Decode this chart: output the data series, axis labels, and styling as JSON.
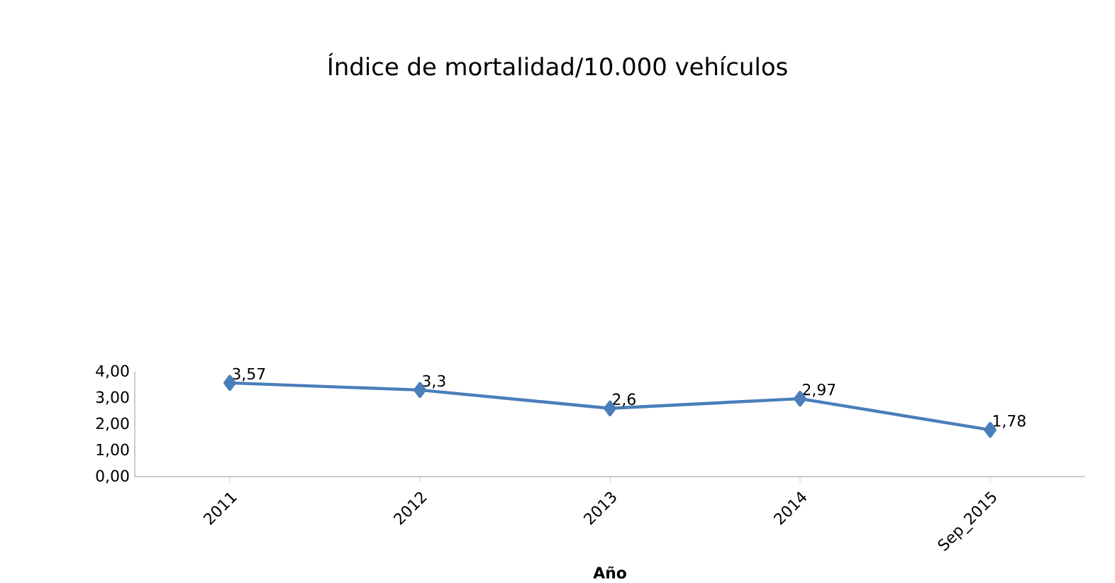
{
  "chart_data": {
    "type": "line",
    "title": "Índice de mortalidad/10.000 vehículos",
    "xlabel": "Año",
    "categories": [
      "2011",
      "2012",
      "2013",
      "2014",
      "Sep_2015"
    ],
    "series": [
      {
        "color": "#4a7ebb",
        "values": [
          3.57,
          3.3,
          2.6,
          2.97,
          1.78
        ],
        "value_labels": [
          "3,57",
          "3,3",
          "2,6",
          "2,97",
          "1,78"
        ]
      }
    ],
    "ylim": [
      0,
      4
    ],
    "yticks": [
      {
        "value": 0,
        "label": "0,00"
      },
      {
        "value": 1,
        "label": "1,00"
      },
      {
        "value": 2,
        "label": "2,00"
      },
      {
        "value": 3,
        "label": "3,00"
      },
      {
        "value": 4,
        "label": "4,00"
      }
    ],
    "marker": "diamond",
    "line_style": "solid",
    "grid": false
  }
}
